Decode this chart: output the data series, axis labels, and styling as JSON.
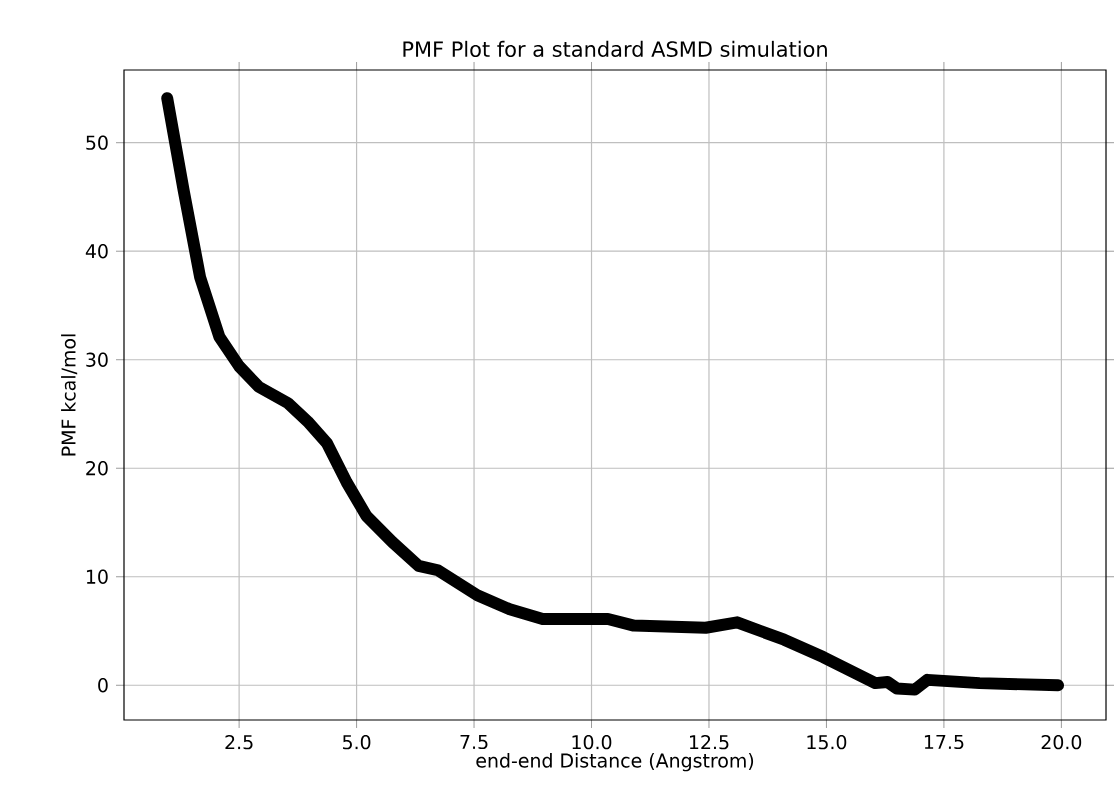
{
  "chart_data": {
    "type": "line",
    "title": "PMF Plot for a standard ASMD simulation",
    "xlabel": "end-end Distance (Angstrom)",
    "ylabel": "PMF kcal/mol",
    "x": [
      0.97,
      1.32,
      1.67,
      2.08,
      2.5,
      2.92,
      3.54,
      3.96,
      4.37,
      4.79,
      5.21,
      5.76,
      6.32,
      6.73,
      7.57,
      8.26,
      8.96,
      9.93,
      10.35,
      10.9,
      12.43,
      13.1,
      14.1,
      14.93,
      16.04,
      16.3,
      16.5,
      16.88,
      17.15,
      18.26,
      19.93
    ],
    "series": [
      {
        "color": "#000000",
        "values": [
          54.1,
          45.6,
          37.6,
          32.1,
          29.4,
          27.5,
          26.0,
          24.3,
          22.3,
          18.7,
          15.6,
          13.2,
          11.0,
          10.6,
          8.3,
          7.0,
          6.1,
          6.1,
          6.1,
          5.5,
          5.3,
          5.8,
          4.2,
          2.6,
          0.2,
          0.3,
          -0.3,
          -0.4,
          0.5,
          0.2,
          0.0
        ]
      }
    ],
    "xlim": [
      0.05,
      20.95
    ],
    "ylim": [
      -3.2,
      56.7
    ],
    "xticks": [
      {
        "value": 2.5,
        "label": "2.5"
      },
      {
        "value": 5.0,
        "label": "5.0"
      },
      {
        "value": 7.5,
        "label": "7.5"
      },
      {
        "value": 10.0,
        "label": "10.0"
      },
      {
        "value": 12.5,
        "label": "12.5"
      },
      {
        "value": 15.0,
        "label": "15.0"
      },
      {
        "value": 17.5,
        "label": "17.5"
      },
      {
        "value": 20.0,
        "label": "20.0"
      }
    ],
    "yticks": [
      0,
      10,
      20,
      30,
      40,
      50
    ],
    "grid": true,
    "line_style": "solid"
  }
}
